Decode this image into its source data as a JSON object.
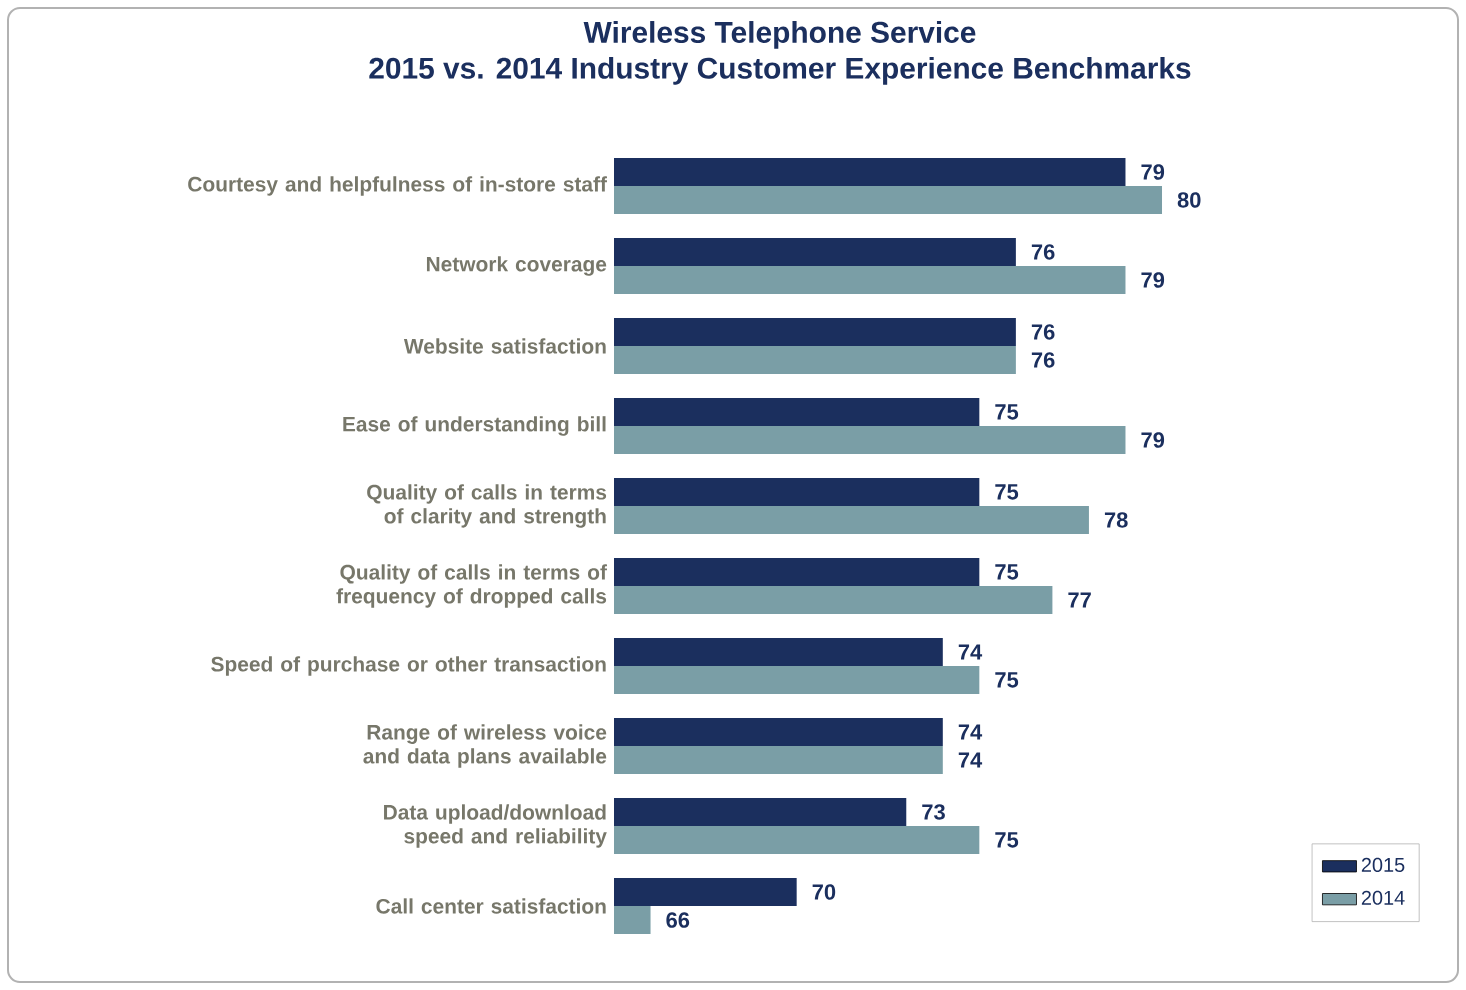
{
  "chart_data": {
    "type": "bar",
    "orientation": "horizontal",
    "title": "Wireless Telephone Service",
    "subtitle": "2015 vs. 2014 Industry Customer Experience Benchmarks",
    "categories": [
      "Courtesy and helpfulness of in-store staff",
      "Network coverage",
      "Website satisfaction",
      "Ease of understanding bill",
      "Quality of calls in terms of clarity and strength",
      "Quality of calls in terms of frequency of dropped calls",
      "Speed of purchase or other transaction",
      "Range of wireless voice and data plans available",
      "Data upload/download speed and reliability",
      "Call center satisfaction"
    ],
    "series": [
      {
        "name": "2015",
        "color": "#1b2f5e",
        "values": [
          79,
          76,
          76,
          75,
          75,
          75,
          74,
          74,
          73,
          70
        ]
      },
      {
        "name": "2014",
        "color": "#7a9ea6",
        "values": [
          80,
          79,
          76,
          79,
          78,
          77,
          75,
          74,
          75,
          66
        ]
      }
    ],
    "xlim": [
      65,
      80
    ],
    "data_labels": true,
    "legend": "bottom right",
    "tick_labels": "y"
  }
}
